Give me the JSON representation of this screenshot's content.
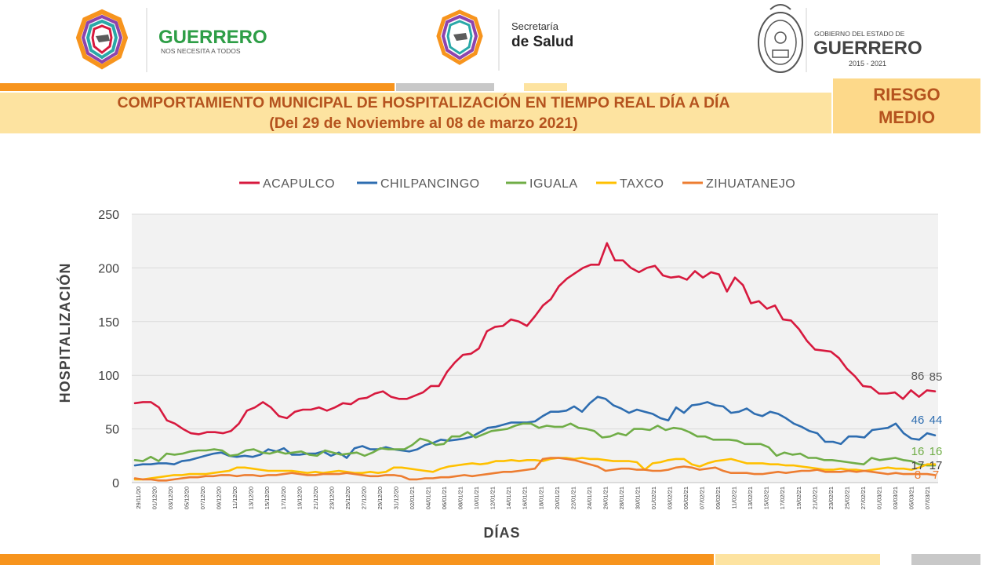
{
  "header": {
    "left_logo": {
      "title": "GUERRERO",
      "subtitle": "NOS NECESITA A TODOS"
    },
    "mid_logo": {
      "line1": "Secretaría",
      "line2": "de Salud"
    },
    "right_logo": {
      "line1": "GOBIERNO DEL ESTADO DE",
      "line2": "GUERRERO",
      "line3": "2015 - 2021"
    }
  },
  "title": {
    "line1": "COMPORTAMIENTO MUNICIPAL DE HOSPITALIZACIÓN EN TIEMPO REAL DÍA A DÍA",
    "line2": "(Del 29 de Noviembre al 08 de marzo 2021)"
  },
  "risk": {
    "line1": "RIESGO",
    "line2": "MEDIO"
  },
  "colors": {
    "orange": "#f7941d",
    "gray": "#c8c8c8",
    "light_yellow": "#fde3a0",
    "title_text": "#b5531e",
    "acapulco": "#d7193e",
    "chilpancingo": "#2e6db0",
    "iguala": "#70ad47",
    "taxco": "#ffc000",
    "zihuatanejo": "#ed7d31"
  },
  "chart_data": {
    "type": "line",
    "ylabel": "HOSPITALIZACIÓN",
    "xlabel": "DÍAS",
    "ylim": [
      0,
      250
    ],
    "yticks": [
      0,
      50,
      100,
      150,
      200,
      250
    ],
    "grid": true,
    "legend_position": "top",
    "x_start": "29/11/20",
    "x_end": "08/03/21",
    "x_tick_labels": [
      "29/11/20",
      "01/12/20",
      "03/12/20",
      "05/12/20",
      "07/12/20",
      "09/12/20",
      "11/12/20",
      "13/12/20",
      "15/12/20",
      "17/12/20",
      "19/12/20",
      "21/12/20",
      "23/12/20",
      "25/12/20",
      "27/12/20",
      "29/12/20",
      "31/12/20",
      "02/01/21",
      "04/01/21",
      "06/01/21",
      "08/01/21",
      "10/01/21",
      "12/01/21",
      "14/01/21",
      "16/01/21",
      "18/01/21",
      "20/01/21",
      "22/01/21",
      "24/01/21",
      "26/01/21",
      "28/01/21",
      "30/01/21",
      "01/02/21",
      "03/02/21",
      "05/02/21",
      "07/02/21",
      "09/02/21",
      "11/02/21",
      "13/02/21",
      "15/02/21",
      "17/02/21",
      "19/02/21",
      "21/02/21",
      "23/02/21",
      "25/02/21",
      "27/02/21",
      "01/03/21",
      "03/03/21",
      "05/03/21",
      "07/03/21"
    ],
    "series": [
      {
        "name": "ACAPULCO",
        "color": "#d7193e",
        "end_labels": [
          "86",
          "85"
        ],
        "values": [
          74,
          75,
          75,
          70,
          58,
          55,
          50,
          46,
          45,
          47,
          47,
          46,
          48,
          55,
          67,
          70,
          75,
          70,
          62,
          60,
          66,
          68,
          68,
          70,
          67,
          70,
          74,
          73,
          78,
          79,
          83,
          85,
          80,
          78,
          78,
          81,
          84,
          90,
          90,
          103,
          112,
          119,
          120,
          125,
          141,
          145,
          146,
          152,
          150,
          146,
          155,
          165,
          171,
          183,
          190,
          195,
          200,
          203,
          203,
          223,
          207,
          207,
          200,
          196,
          200,
          202,
          193,
          191,
          192,
          189,
          197,
          191,
          196,
          194,
          178,
          191,
          184,
          167,
          169,
          162,
          165,
          152,
          151,
          143,
          132,
          124,
          123,
          122,
          116,
          106,
          99,
          90,
          89,
          83,
          83,
          84,
          78,
          86,
          80,
          86,
          85
        ]
      },
      {
        "name": "CHILPANCINGO",
        "color": "#2e6db0",
        "end_labels": [
          "46",
          "44"
        ],
        "values": [
          16,
          17,
          17,
          18,
          18,
          17,
          20,
          21,
          23,
          25,
          27,
          28,
          25,
          24,
          25,
          24,
          26,
          31,
          29,
          32,
          26,
          26,
          27,
          27,
          29,
          25,
          28,
          23,
          32,
          34,
          31,
          31,
          33,
          31,
          30,
          29,
          31,
          35,
          37,
          40,
          39,
          40,
          41,
          43,
          47,
          51,
          52,
          54,
          56,
          56,
          56,
          57,
          62,
          66,
          66,
          67,
          71,
          66,
          74,
          80,
          78,
          72,
          69,
          65,
          68,
          66,
          64,
          60,
          58,
          70,
          65,
          72,
          73,
          75,
          72,
          71,
          65,
          66,
          69,
          64,
          62,
          66,
          64,
          60,
          55,
          52,
          48,
          46,
          38,
          38,
          36,
          43,
          43,
          42,
          49,
          50,
          51,
          55,
          46,
          41,
          40,
          46,
          44
        ]
      },
      {
        "name": "IGUALA",
        "color": "#70ad47",
        "end_labels": [
          "16",
          "16"
        ],
        "values": [
          21,
          20,
          24,
          20,
          27,
          26,
          27,
          29,
          30,
          30,
          31,
          30,
          25,
          26,
          30,
          31,
          28,
          27,
          29,
          27,
          28,
          29,
          26,
          25,
          30,
          28,
          26,
          27,
          28,
          25,
          28,
          32,
          31,
          31,
          31,
          35,
          41,
          39,
          35,
          36,
          43,
          43,
          47,
          42,
          45,
          48,
          49,
          50,
          53,
          55,
          55,
          51,
          53,
          52,
          52,
          55,
          51,
          50,
          48,
          42,
          43,
          46,
          44,
          50,
          50,
          49,
          53,
          49,
          51,
          50,
          47,
          43,
          43,
          40,
          40,
          40,
          39,
          36,
          36,
          36,
          33,
          25,
          28,
          26,
          27,
          23,
          23,
          21,
          21,
          20,
          19,
          18,
          17,
          23,
          21,
          22,
          23,
          21,
          20,
          17,
          16,
          16
        ]
      },
      {
        "name": "TAXCO",
        "color": "#ffc000",
        "end_labels": [
          "17",
          "17"
        ],
        "values": [
          3,
          3,
          4,
          5,
          6,
          7,
          7,
          8,
          8,
          8,
          9,
          10,
          11,
          14,
          14,
          13,
          12,
          11,
          11,
          11,
          11,
          10,
          9,
          10,
          9,
          10,
          11,
          10,
          9,
          9,
          10,
          9,
          10,
          14,
          14,
          13,
          12,
          11,
          10,
          13,
          15,
          16,
          17,
          18,
          17,
          18,
          20,
          20,
          21,
          20,
          21,
          21,
          20,
          22,
          23,
          23,
          22,
          23,
          22,
          22,
          21,
          20,
          20,
          20,
          19,
          12,
          18,
          19,
          21,
          22,
          22,
          17,
          15,
          18,
          20,
          21,
          22,
          20,
          18,
          18,
          18,
          17,
          17,
          16,
          16,
          15,
          14,
          13,
          12,
          12,
          13,
          12,
          12,
          11,
          12,
          13,
          14,
          13,
          13,
          12,
          14,
          17,
          17
        ]
      },
      {
        "name": "ZIHUATANEJO",
        "color": "#ed7d31",
        "end_labels": [
          "8",
          "7"
        ],
        "values": [
          4,
          3,
          3,
          2,
          2,
          3,
          4,
          5,
          5,
          6,
          6,
          7,
          7,
          6,
          7,
          7,
          6,
          7,
          7,
          8,
          9,
          8,
          7,
          7,
          8,
          8,
          8,
          9,
          8,
          7,
          6,
          6,
          7,
          7,
          6,
          3,
          3,
          4,
          4,
          5,
          5,
          6,
          7,
          6,
          7,
          8,
          9,
          10,
          10,
          11,
          12,
          13,
          22,
          23,
          23,
          22,
          21,
          19,
          17,
          15,
          11,
          12,
          13,
          13,
          12,
          12,
          11,
          11,
          12,
          14,
          15,
          14,
          12,
          13,
          14,
          11,
          9,
          9,
          9,
          8,
          8,
          9,
          10,
          9,
          10,
          11,
          11,
          12,
          10,
          10,
          10,
          11,
          10,
          11,
          10,
          9,
          8,
          9,
          8,
          8,
          8,
          8,
          7
        ]
      }
    ]
  }
}
